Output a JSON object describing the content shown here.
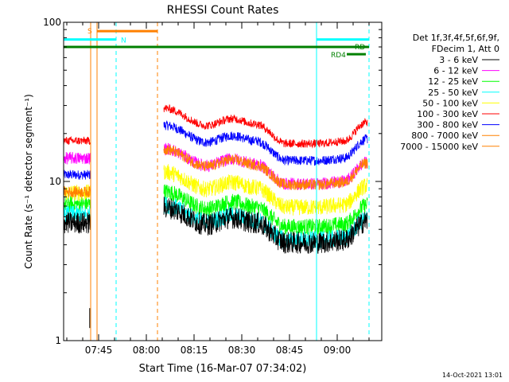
{
  "chart_data": {
    "type": "line",
    "title": "RHESSI Count Rates",
    "xlabel": "Start Time (16-Mar-07 07:34:02)",
    "ylabel": "Count Rate (s⁻¹ detector segment⁻¹)",
    "y_scale": "log",
    "ylim": [
      1,
      100
    ],
    "y_ticks": [
      {
        "value": 1,
        "label": "1"
      },
      {
        "value": 10,
        "label": "10"
      },
      {
        "value": 100,
        "label": "100"
      }
    ],
    "x_unit": "minutes after 07:34:02",
    "xlim": [
      0,
      100
    ],
    "x_ticks": [
      {
        "value": 11,
        "label": "07:45"
      },
      {
        "value": 26,
        "label": "08:00"
      },
      {
        "value": 41,
        "label": "08:15"
      },
      {
        "value": 56,
        "label": "08:30"
      },
      {
        "value": 71,
        "label": "08:45"
      },
      {
        "value": 86,
        "label": "09:00"
      }
    ],
    "legend": {
      "position": "right",
      "header": [
        "Det 1f,3f,4f,5f,6f,9f,",
        "FDecim 1, Att 0"
      ]
    },
    "series": [
      {
        "name": "3 - 6 keV",
        "color": "#000000",
        "base": 5.5
      },
      {
        "name": "6 - 12 keV",
        "color": "#ff00ff",
        "base": 14
      },
      {
        "name": "12 - 25 keV",
        "color": "#00ff00",
        "base": 7.2
      },
      {
        "name": "25 - 50 keV",
        "color": "#00ffff",
        "base": 6.2
      },
      {
        "name": "50 - 100 keV",
        "color": "#ffff00",
        "base": 8.5
      },
      {
        "name": "100 - 300 keV",
        "color": "#ff0000",
        "base": 18
      },
      {
        "name": "300 - 800 keV",
        "color": "#0000ff",
        "base": 11
      },
      {
        "name": "800 - 7000 keV",
        "color": "#ff8000",
        "base": 8.6
      },
      {
        "name": "7000 - 15000 keV",
        "color": "#ff8000",
        "base": 0
      }
    ],
    "segments": [
      {
        "start": 0,
        "end": 8.5
      },
      {
        "start": 31.5,
        "end": 95.5
      }
    ],
    "envelope": [
      {
        "t": 31.5,
        "f": 1.0
      },
      {
        "t": 45,
        "f": 0.78
      },
      {
        "t": 53,
        "f": 0.86
      },
      {
        "t": 60,
        "f": 0.8
      },
      {
        "t": 70,
        "f": 0.6
      },
      {
        "t": 80,
        "f": 0.6
      },
      {
        "t": 88,
        "f": 0.62
      },
      {
        "t": 95.5,
        "f": 0.82
      }
    ],
    "vlines": [
      {
        "t": 0,
        "color": "#00ffff",
        "style": "solid"
      },
      {
        "t": 8.5,
        "color": "#ff8000",
        "style": "solid"
      },
      {
        "t": 10.5,
        "color": "#ff8000",
        "style": "solid"
      },
      {
        "t": 16.5,
        "color": "#00ffff",
        "style": "dashed"
      },
      {
        "t": 29.5,
        "color": "#ff8000",
        "style": "dashed"
      },
      {
        "t": 79.5,
        "color": "#00ffff",
        "style": "solid"
      },
      {
        "t": 96,
        "color": "#00ffff",
        "style": "dashed"
      }
    ],
    "flag_bars": [
      {
        "label": "S",
        "color": "#ff8000",
        "t_start": 10.5,
        "t_end": 29.5,
        "level": 88
      },
      {
        "label": "N",
        "color": "#00ffff",
        "t_start": 0,
        "t_end": 16.5,
        "level": 78
      },
      {
        "label": "",
        "color": "#00ffff",
        "t_start": 79.5,
        "t_end": 96,
        "level": 78
      },
      {
        "label": "",
        "color": "#008000",
        "t_start": 0,
        "t_end": 90,
        "level": 70
      },
      {
        "label": "RD",
        "color": "#008000",
        "t_start": 79.5,
        "t_end": 96,
        "level": 70
      },
      {
        "label": "RD4",
        "color": "#008000",
        "t_start": 89,
        "t_end": 95,
        "level": 63
      }
    ]
  },
  "footer": {
    "timestamp": "14-Oct-2021 13:01"
  }
}
